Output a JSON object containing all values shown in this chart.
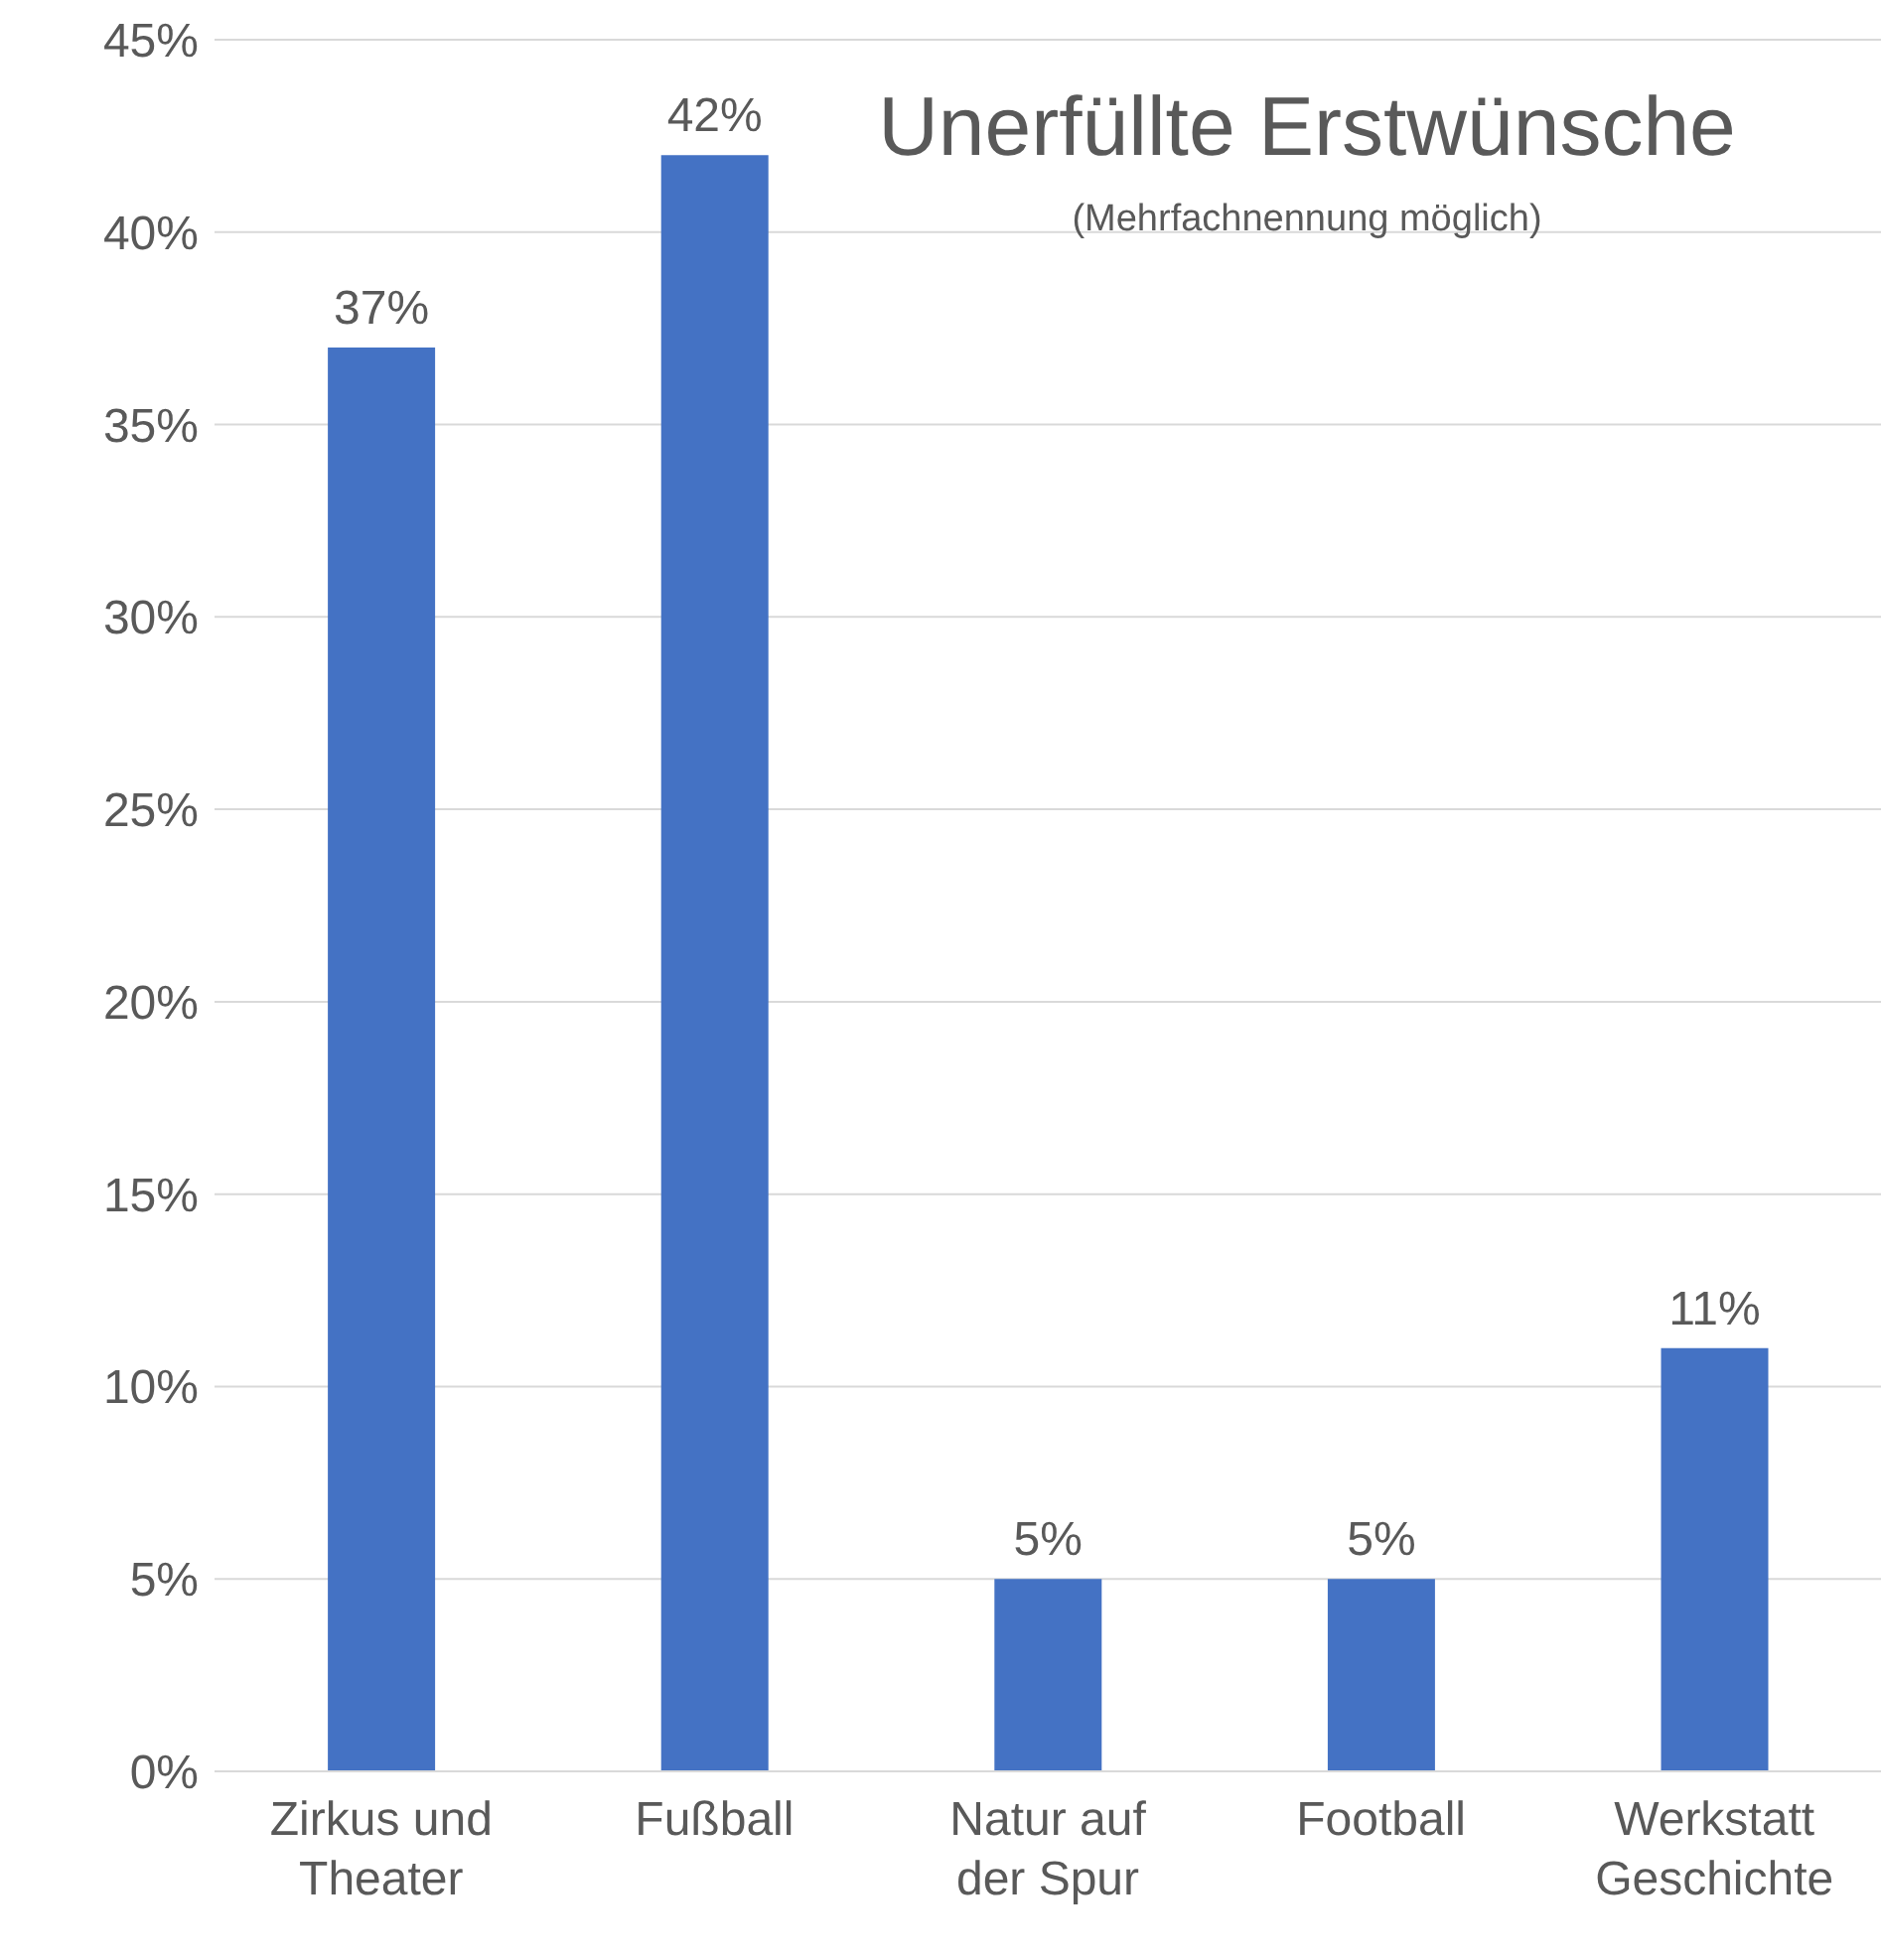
{
  "chart_data": {
    "type": "bar",
    "title": "Unerfüllte Erstwünsche",
    "subtitle": "(Mehrfachnennung möglich)",
    "categories": [
      "Zirkus und Theater",
      "Fußball",
      "Natur auf der Spur",
      "Football",
      "Werkstatt Geschichte"
    ],
    "values": [
      37,
      42,
      5,
      5,
      11
    ],
    "value_labels": [
      "37%",
      "42%",
      "5%",
      "5%",
      "11%"
    ],
    "color": "#4472c4",
    "ylim": [
      0,
      45
    ],
    "yticks": [
      {
        "value": 0,
        "label": "0%"
      },
      {
        "value": 5,
        "label": "5%"
      },
      {
        "value": 10,
        "label": "10%"
      },
      {
        "value": 15,
        "label": "15%"
      },
      {
        "value": 20,
        "label": "20%"
      },
      {
        "value": 25,
        "label": "25%"
      },
      {
        "value": 30,
        "label": "30%"
      },
      {
        "value": 35,
        "label": "35%"
      },
      {
        "value": 40,
        "label": "40%"
      },
      {
        "value": 45,
        "label": "45%"
      }
    ],
    "grid": "y",
    "legend": false
  }
}
